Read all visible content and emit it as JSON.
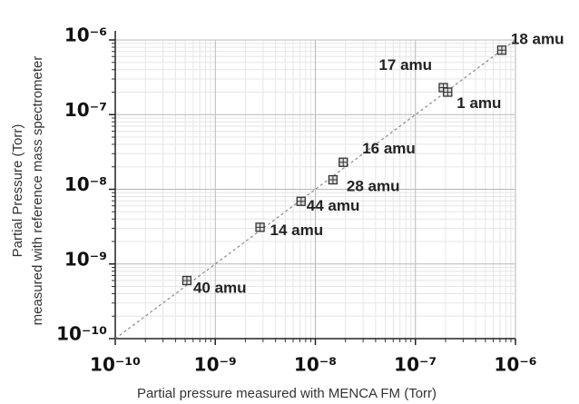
{
  "chart_data": {
    "type": "scatter",
    "x_label": "Partial pressure  measured with MENCA FM (Torr)",
    "y_label": [
      "Partial Pressure (Torr)",
      "measured with reference mass spectrometer"
    ],
    "log_x": true,
    "log_y": true,
    "xlim": [
      1e-10,
      1e-06
    ],
    "ylim": [
      1e-10,
      1e-06
    ],
    "xticks": [
      {
        "value": 1e-10,
        "label": "10⁻¹⁰"
      },
      {
        "value": 1e-09,
        "label": "10⁻⁹"
      },
      {
        "value": 1e-08,
        "label": "10⁻⁸"
      },
      {
        "value": 1e-07,
        "label": "10⁻⁷"
      },
      {
        "value": 1e-06,
        "label": "10⁻⁶"
      }
    ],
    "yticks": [
      {
        "value": 1e-10,
        "label": "10⁻¹⁰"
      },
      {
        "value": 1e-09,
        "label": "10⁻⁹"
      },
      {
        "value": 1e-08,
        "label": "10⁻⁸"
      },
      {
        "value": 1e-07,
        "label": "10⁻⁷"
      },
      {
        "value": 1e-06,
        "label": "10⁻⁶"
      }
    ],
    "grid": true,
    "minor_grid": true,
    "diagonal": true,
    "color": "#333333",
    "labels": [
      "18 amu",
      "17 amu",
      "1 amu",
      "16 amu",
      "28 amu",
      "44 amu",
      "14 amu",
      "40 amu"
    ],
    "x": [
      7.3e-07,
      1.9e-07,
      2.1e-07,
      1.9e-08,
      1.5e-08,
      7.2e-09,
      2.8e-09,
      5.2e-10
    ],
    "values": [
      7.3e-07,
      2.3e-07,
      2e-07,
      2.3e-08,
      1.34e-08,
      6.9e-09,
      3.1e-09,
      6e-10
    ]
  }
}
